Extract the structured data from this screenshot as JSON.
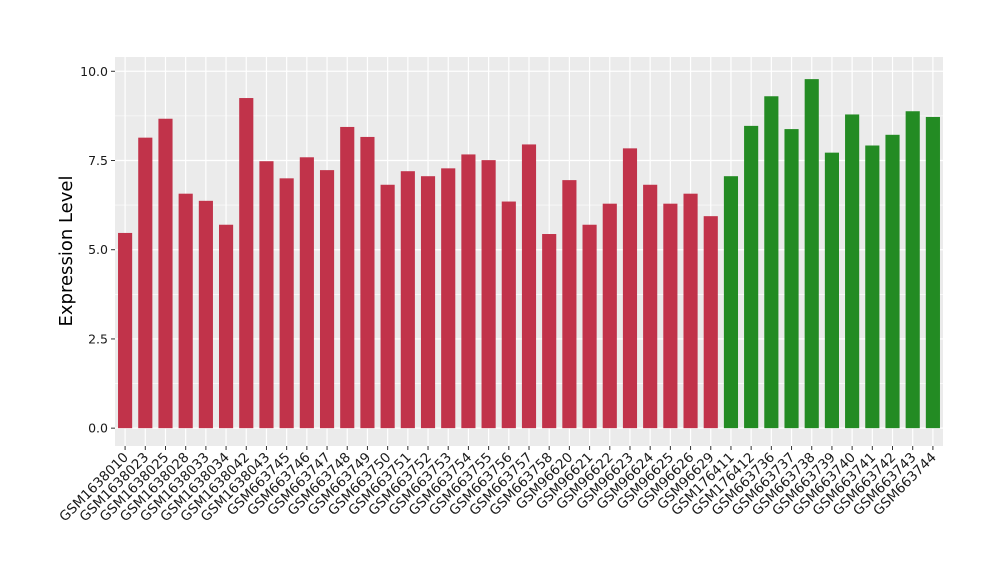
{
  "chart_data": {
    "type": "bar",
    "title": "",
    "xlabel": "",
    "ylabel": "Expression Level",
    "ylim": [
      -0.5,
      10.4
    ],
    "yticks": [
      "0.0",
      "2.5",
      "5.0",
      "7.5",
      "10.0"
    ],
    "grid": true,
    "legend": "none",
    "categories": [
      "GSM1638010",
      "GSM1638023",
      "GSM1638025",
      "GSM1638028",
      "GSM1638033",
      "GSM1638034",
      "GSM1638042",
      "GSM1638043",
      "GSM663745",
      "GSM663746",
      "GSM663747",
      "GSM663748",
      "GSM663749",
      "GSM663750",
      "GSM663751",
      "GSM663752",
      "GSM663753",
      "GSM663754",
      "GSM663755",
      "GSM663756",
      "GSM663757",
      "GSM663758",
      "GSM96620",
      "GSM96621",
      "GSM96622",
      "GSM96623",
      "GSM96624",
      "GSM96625",
      "GSM96626",
      "GSM96629",
      "GSM176411",
      "GSM176412",
      "GSM663736",
      "GSM663737",
      "GSM663738",
      "GSM663739",
      "GSM663740",
      "GSM663741",
      "GSM663742",
      "GSM663743",
      "GSM663744"
    ],
    "values": [
      5.47,
      8.14,
      8.67,
      6.57,
      6.37,
      5.7,
      9.25,
      7.48,
      7.0,
      7.59,
      7.23,
      8.44,
      8.16,
      6.82,
      7.2,
      7.06,
      7.28,
      7.67,
      7.51,
      6.35,
      7.95,
      5.44,
      6.95,
      5.7,
      6.29,
      7.84,
      6.82,
      6.29,
      6.57,
      5.94,
      7.06,
      8.47,
      9.3,
      8.38,
      9.78,
      7.72,
      8.79,
      7.92,
      8.22,
      8.88,
      8.72
    ],
    "colors": [
      "#c1334a",
      "#c1334a",
      "#c1334a",
      "#c1334a",
      "#c1334a",
      "#c1334a",
      "#c1334a",
      "#c1334a",
      "#c1334a",
      "#c1334a",
      "#c1334a",
      "#c1334a",
      "#c1334a",
      "#c1334a",
      "#c1334a",
      "#c1334a",
      "#c1334a",
      "#c1334a",
      "#c1334a",
      "#c1334a",
      "#c1334a",
      "#c1334a",
      "#c1334a",
      "#c1334a",
      "#c1334a",
      "#c1334a",
      "#c1334a",
      "#c1334a",
      "#c1334a",
      "#c1334a",
      "#238b23",
      "#238b23",
      "#238b23",
      "#238b23",
      "#238b23",
      "#238b23",
      "#238b23",
      "#238b23",
      "#238b23",
      "#238b23",
      "#238b23"
    ],
    "panel_background": "#ebebeb",
    "gridline_color": "#ffffff"
  }
}
